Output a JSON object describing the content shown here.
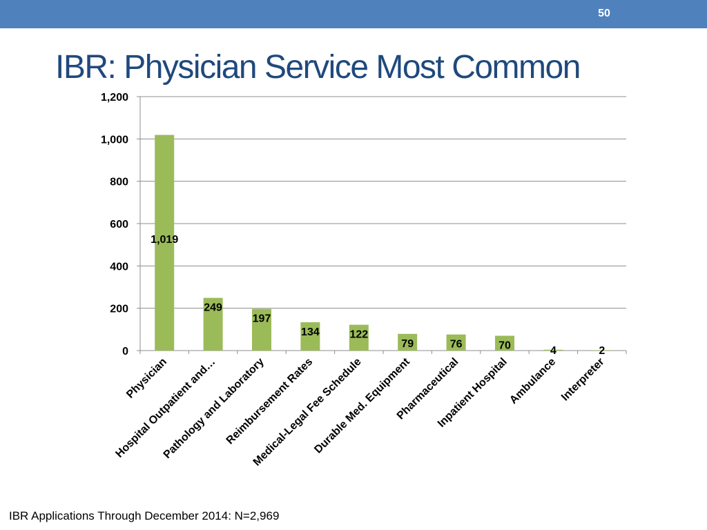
{
  "slide": {
    "number": "50",
    "title": "IBR: Physician Service Most Common",
    "footer": "IBR Applications Through December 2014: N=2,969"
  },
  "colors": {
    "bar": "#9bbb59",
    "header_bar": "#4f81bd",
    "title": "#1f497d",
    "grid": "#8c8c8c"
  },
  "chart_data": {
    "type": "bar",
    "title": "",
    "xlabel": "",
    "ylabel": "",
    "ylim": [
      0,
      1200
    ],
    "yticks": [
      0,
      200,
      400,
      600,
      800,
      1000,
      1200
    ],
    "ytick_labels": [
      "0",
      "200",
      "400",
      "600",
      "800",
      "1,000",
      "1,200"
    ],
    "grid": true,
    "categories": [
      "Physician",
      "Hospital Outpatient and…",
      "Pathology and Laboratory",
      "Reimbursement Rates",
      "Medical-Legal Fee Schedule",
      "Durable Med. Equipment",
      "Pharmaceutical",
      "Inpatient Hospital",
      "Ambulance",
      "Interpreter"
    ],
    "values": [
      1019,
      249,
      197,
      134,
      122,
      79,
      76,
      70,
      4,
      2
    ],
    "data_labels": [
      "1,019",
      "249",
      "197",
      "134",
      "122",
      "79",
      "76",
      "70",
      "4",
      "2"
    ]
  }
}
